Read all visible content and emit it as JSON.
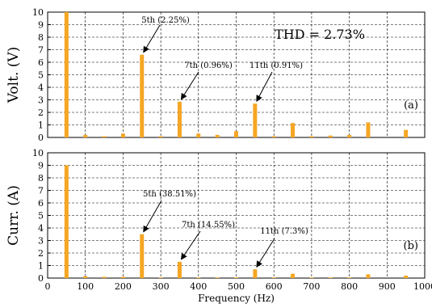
{
  "chart_data": [
    {
      "type": "bar",
      "panel_label": "(a)",
      "ylabel": "Volt.  (V)",
      "ylim": [
        0,
        10
      ],
      "xlim": [
        0,
        1000
      ],
      "yticks": [
        "0",
        "1",
        "2",
        "3",
        "4",
        "5",
        "6",
        "7",
        "8",
        "9",
        "10"
      ],
      "grid": true,
      "bar_color": "#f5a623",
      "x": [
        50,
        100,
        150,
        200,
        250,
        300,
        350,
        400,
        450,
        500,
        550,
        600,
        650,
        700,
        750,
        800,
        850,
        900,
        950
      ],
      "values": [
        10.0,
        0.2,
        0.1,
        0.3,
        6.6,
        0.1,
        2.85,
        0.3,
        0.2,
        0.5,
        2.7,
        0.1,
        1.15,
        0.1,
        0.15,
        0.2,
        1.2,
        0.0,
        0.6
      ],
      "text_annotation": "THD = 2.73%",
      "annotations": [
        {
          "label": "5th (2.25%)",
          "x": 250,
          "y": 6.6
        },
        {
          "label": "7th (0.96%)",
          "x": 350,
          "y": 2.85
        },
        {
          "label": "11th (0.91%)",
          "x": 550,
          "y": 2.7
        }
      ]
    },
    {
      "type": "bar",
      "panel_label": "(b)",
      "ylabel": "Curr.  (A)",
      "xlabel": "Frequency (Hz)",
      "ylim": [
        0,
        10
      ],
      "xlim": [
        0,
        1000
      ],
      "yticks": [
        "0",
        "1",
        "2",
        "3",
        "4",
        "5",
        "6",
        "7",
        "8",
        "9",
        "10"
      ],
      "xticks": [
        "0",
        "100",
        "200",
        "300",
        "400",
        "500",
        "600",
        "700",
        "800",
        "900",
        "1000"
      ],
      "grid": true,
      "bar_color": "#f5a623",
      "x": [
        50,
        100,
        150,
        200,
        250,
        300,
        350,
        400,
        450,
        500,
        550,
        600,
        650,
        700,
        750,
        800,
        850,
        900,
        950
      ],
      "values": [
        9.0,
        0.15,
        0.1,
        0.1,
        3.5,
        0.05,
        1.3,
        0.05,
        0.05,
        0.05,
        0.7,
        0.05,
        0.35,
        0.05,
        0.05,
        0.05,
        0.3,
        0.0,
        0.2
      ],
      "annotations": [
        {
          "label": "5th (38.51%)",
          "x": 250,
          "y": 3.5
        },
        {
          "label": "7th (14.55%)",
          "x": 350,
          "y": 1.3
        },
        {
          "label": "11th (7.3%)",
          "x": 550,
          "y": 0.7
        }
      ]
    }
  ]
}
